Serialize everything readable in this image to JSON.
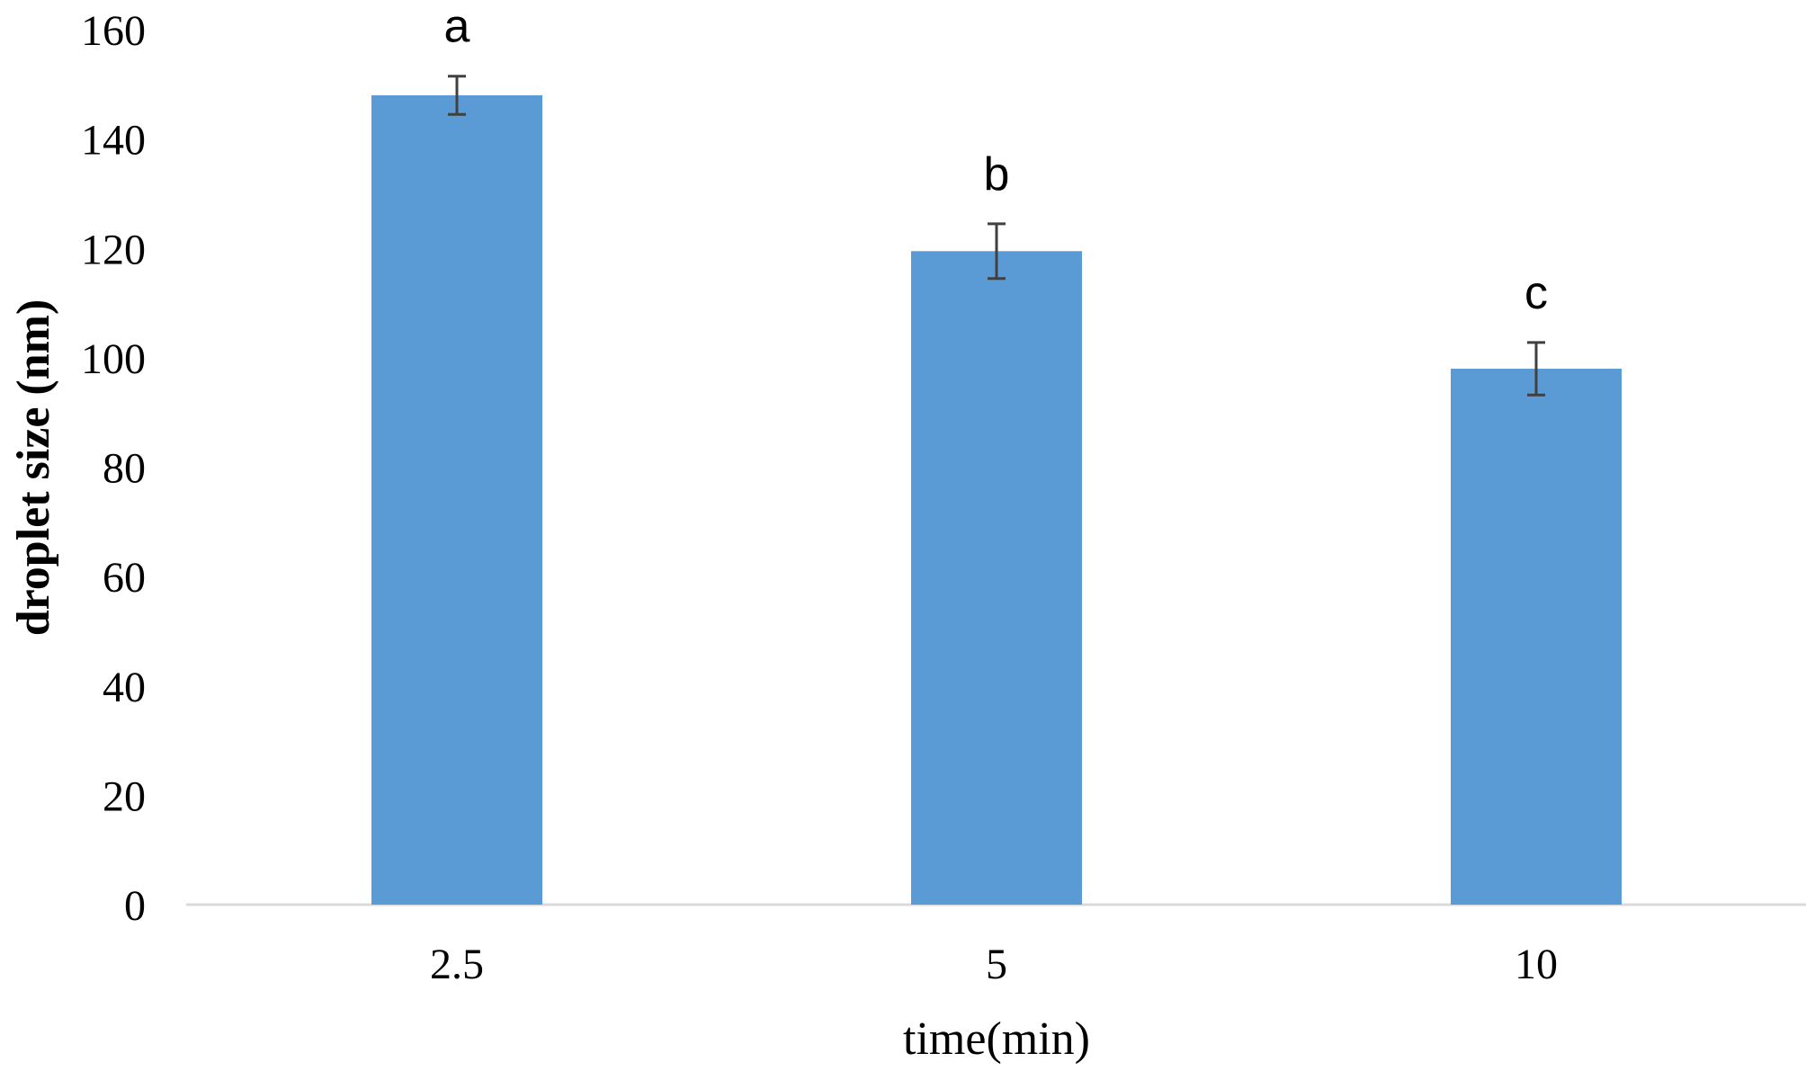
{
  "chart_data": {
    "type": "bar",
    "categories": [
      "2.5",
      "5",
      "10"
    ],
    "series": [
      {
        "values": [
          148,
          119.5,
          98
        ],
        "errors": [
          3.5,
          5,
          4.8
        ],
        "significance": [
          "a",
          "b",
          "c"
        ]
      }
    ],
    "xlabel": "time(min)",
    "ylabel": "droplet size (nm)",
    "ylim": [
      0,
      160
    ],
    "yticks": [
      0,
      20,
      40,
      60,
      80,
      100,
      120,
      140,
      160
    ],
    "grid": false,
    "legend": "none",
    "colors": {
      "bar": "#5b9bd5",
      "error_bar": "#404040",
      "axis": "#d9d9d9"
    }
  }
}
